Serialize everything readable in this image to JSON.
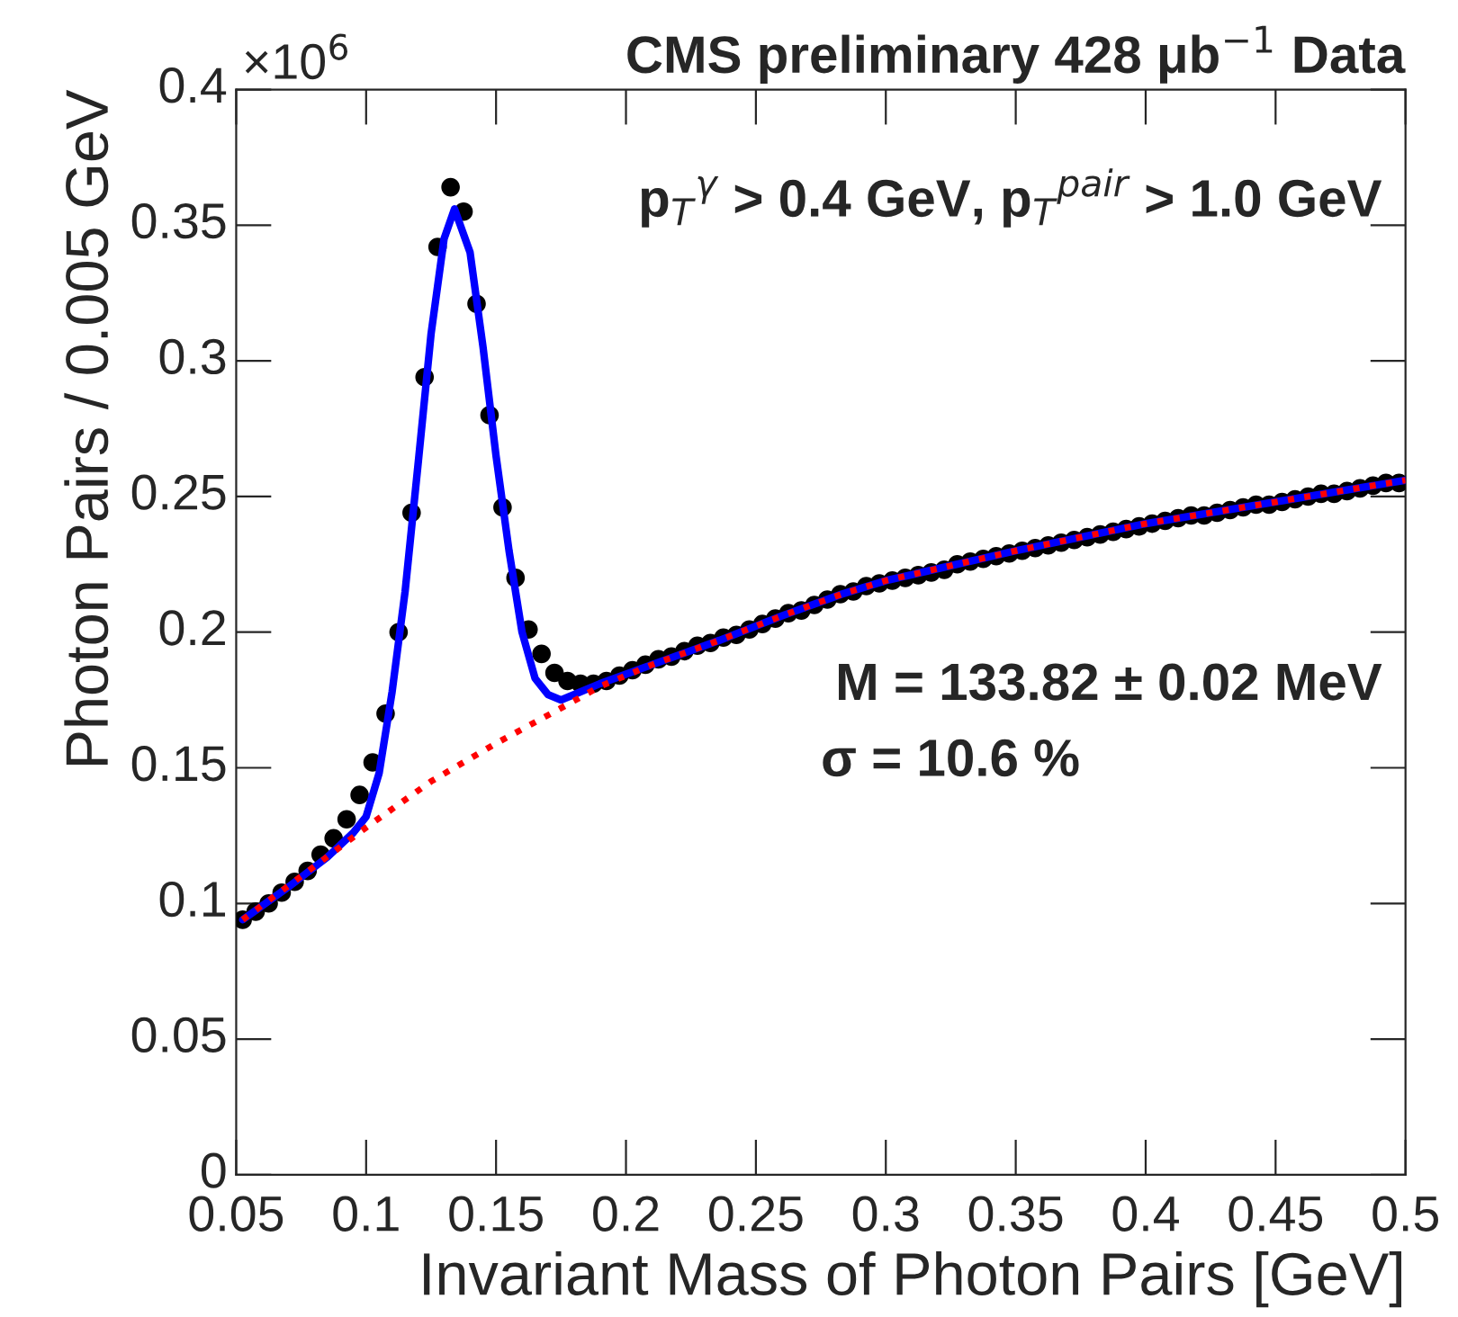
{
  "chart_data": {
    "type": "scatter",
    "xlabel": "Invariant Mass of Photon Pairs [GeV]",
    "ylabel": "Photon Pairs / 0.005 GeV",
    "annotations": [
      "×10$^{6}$",
      "CMS preliminary 428 μb$^{−1}$ Data",
      "p$_{T}$$^{γ}$ > 0.4 GeV, p$_{T}$$^{pair}$ > 1.0 GeV",
      "M = 133.82 ± 0.02 MeV",
      "σ = 10.6 %"
    ],
    "xlim": [
      0.05,
      0.5
    ],
    "xticks": [
      0.05,
      0.1,
      0.15,
      0.2,
      0.25,
      0.3,
      0.35,
      0.4,
      0.45,
      0.5
    ],
    "ylim": [
      0,
      0.4
    ],
    "yticks": [
      0,
      0.05,
      0.1,
      0.15,
      0.2,
      0.25,
      0.3,
      0.35,
      0.4
    ],
    "grid": false,
    "legend": false,
    "series": [
      {
        "type": "line",
        "color": "#ff0000",
        "line_style": "dotted",
        "marker": "none",
        "x": [
          0.0525,
          0.075,
          0.1,
          0.125,
          0.15,
          0.175,
          0.19,
          0.21,
          0.236,
          0.26,
          0.283,
          0.3,
          0.35,
          0.4,
          0.45,
          0.5
        ],
        "values": [
          0.094,
          0.11,
          0.128,
          0.145,
          0.159,
          0.172,
          0.18,
          0.188,
          0.197,
          0.206,
          0.214,
          0.219,
          0.23,
          0.24,
          0.248,
          0.256
        ]
      },
      {
        "type": "line",
        "color": "#0000ff",
        "line_style": "solid",
        "marker": "none",
        "x": [
          0.0525,
          0.07,
          0.085,
          0.095,
          0.1,
          0.105,
          0.11,
          0.115,
          0.12,
          0.125,
          0.13,
          0.134,
          0.14,
          0.145,
          0.15,
          0.155,
          0.16,
          0.165,
          0.17,
          0.175,
          0.18,
          0.19,
          0.21,
          0.236,
          0.26,
          0.283,
          0.3,
          0.35,
          0.4,
          0.45,
          0.5
        ],
        "values": [
          0.094,
          0.106,
          0.117,
          0.126,
          0.132,
          0.148,
          0.178,
          0.215,
          0.262,
          0.31,
          0.345,
          0.356,
          0.34,
          0.305,
          0.265,
          0.23,
          0.2,
          0.183,
          0.177,
          0.175,
          0.177,
          0.181,
          0.188,
          0.197,
          0.206,
          0.214,
          0.219,
          0.23,
          0.24,
          0.248,
          0.256
        ]
      },
      {
        "color": "#000000",
        "marker": "circle",
        "x": [
          0.0525,
          0.0575,
          0.0625,
          0.0675,
          0.0725,
          0.0775,
          0.0825,
          0.0875,
          0.0925,
          0.0975,
          0.1025,
          0.1075,
          0.1125,
          0.1175,
          0.1225,
          0.1275,
          0.1325,
          0.1375,
          0.1425,
          0.1475,
          0.1525,
          0.1575,
          0.1625,
          0.1675,
          0.1725,
          0.1775,
          0.1825,
          0.1875,
          0.1925,
          0.1975,
          0.2025,
          0.2075,
          0.2125,
          0.2175,
          0.2225,
          0.2275,
          0.2325,
          0.2375,
          0.2425,
          0.2475,
          0.2525,
          0.2575,
          0.2625,
          0.2675,
          0.2725,
          0.2775,
          0.2825,
          0.2875,
          0.2925,
          0.2975,
          0.3025,
          0.3075,
          0.3125,
          0.3175,
          0.3225,
          0.3275,
          0.3325,
          0.3375,
          0.3425,
          0.3475,
          0.3525,
          0.3575,
          0.3625,
          0.3675,
          0.3725,
          0.3775,
          0.3825,
          0.3875,
          0.3925,
          0.3975,
          0.4025,
          0.4075,
          0.4125,
          0.4175,
          0.4225,
          0.4275,
          0.4325,
          0.4375,
          0.4425,
          0.4475,
          0.4525,
          0.4575,
          0.4625,
          0.4675,
          0.4725,
          0.4775,
          0.4825,
          0.4875,
          0.4925,
          0.4975
        ],
        "values": [
          0.094,
          0.097,
          0.1,
          0.104,
          0.108,
          0.112,
          0.118,
          0.124,
          0.131,
          0.14,
          0.152,
          0.17,
          0.2,
          0.244,
          0.294,
          0.342,
          0.364,
          0.355,
          0.321,
          0.28,
          0.246,
          0.22,
          0.201,
          0.192,
          0.185,
          0.182,
          0.181,
          0.181,
          0.182,
          0.184,
          0.186,
          0.188,
          0.19,
          0.191,
          0.193,
          0.195,
          0.196,
          0.198,
          0.199,
          0.201,
          0.203,
          0.205,
          0.207,
          0.208,
          0.21,
          0.212,
          0.214,
          0.215,
          0.217,
          0.218,
          0.219,
          0.22,
          0.221,
          0.222,
          0.223,
          0.225,
          0.226,
          0.227,
          0.228,
          0.229,
          0.23,
          0.231,
          0.232,
          0.233,
          0.234,
          0.235,
          0.236,
          0.237,
          0.238,
          0.239,
          0.24,
          0.241,
          0.242,
          0.243,
          0.243,
          0.244,
          0.245,
          0.246,
          0.247,
          0.247,
          0.248,
          0.249,
          0.25,
          0.251,
          0.251,
          0.252,
          0.253,
          0.254,
          0.255,
          0.255
        ]
      }
    ]
  }
}
